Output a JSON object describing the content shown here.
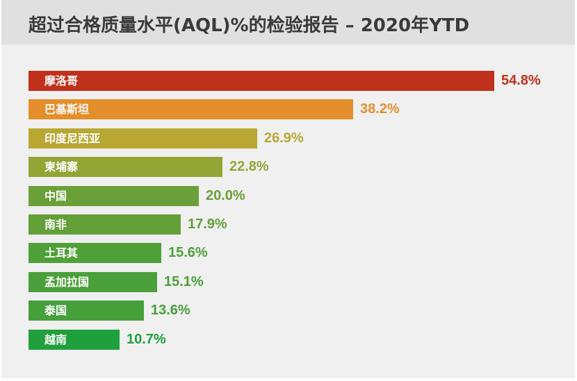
{
  "title": "超过合格质量水平(AQL)%的检验报告 – 2020年YTD",
  "chart_data": {
    "type": "bar",
    "orientation": "horizontal",
    "title": "超过合格质量水平(AQL)%的检验报告 – 2020年YTD",
    "xlabel": "",
    "ylabel": "",
    "grid": false,
    "legend": "none",
    "categories": [
      "摩洛哥",
      "巴基斯坦",
      "印度尼西亚",
      "柬埔寨",
      "中国",
      "南非",
      "土耳其",
      "孟加拉国",
      "泰国",
      "越南"
    ],
    "values": [
      54.8,
      38.2,
      26.9,
      22.8,
      20.0,
      17.9,
      15.6,
      15.1,
      13.6,
      10.7
    ],
    "value_labels": [
      "54.8%",
      "38.2%",
      "26.9%",
      "22.8%",
      "20.0%",
      "17.9%",
      "15.6%",
      "15.1%",
      "13.6%",
      "10.7%"
    ],
    "colors": [
      "#bf311a",
      "#e58e2c",
      "#b8a833",
      "#92a535",
      "#6aa037",
      "#62a037",
      "#4fa039",
      "#4aa03a",
      "#45a03a",
      "#20a03c"
    ]
  },
  "bars": [
    {
      "label": "摩洛哥",
      "value": "54.8%",
      "pct": 54.8,
      "color": "#bf311a"
    },
    {
      "label": "巴基斯坦",
      "value": "38.2%",
      "pct": 38.2,
      "color": "#e58e2c"
    },
    {
      "label": "印度尼西亚",
      "value": "26.9%",
      "pct": 26.9,
      "color": "#b8a833"
    },
    {
      "label": "柬埔寨",
      "value": "22.8%",
      "pct": 22.8,
      "color": "#92a535"
    },
    {
      "label": "中国",
      "value": "20.0%",
      "pct": 20.0,
      "color": "#6aa037"
    },
    {
      "label": "南非",
      "value": "17.9%",
      "pct": 17.9,
      "color": "#62a037"
    },
    {
      "label": "土耳其",
      "value": "15.6%",
      "pct": 15.6,
      "color": "#4fa039"
    },
    {
      "label": "孟加拉国",
      "value": "15.1%",
      "pct": 15.1,
      "color": "#4aa03a"
    },
    {
      "label": "泰国",
      "value": "13.6%",
      "pct": 13.6,
      "color": "#45a03a"
    },
    {
      "label": "越南",
      "value": "10.7%",
      "pct": 10.7,
      "color": "#20a03c"
    }
  ]
}
